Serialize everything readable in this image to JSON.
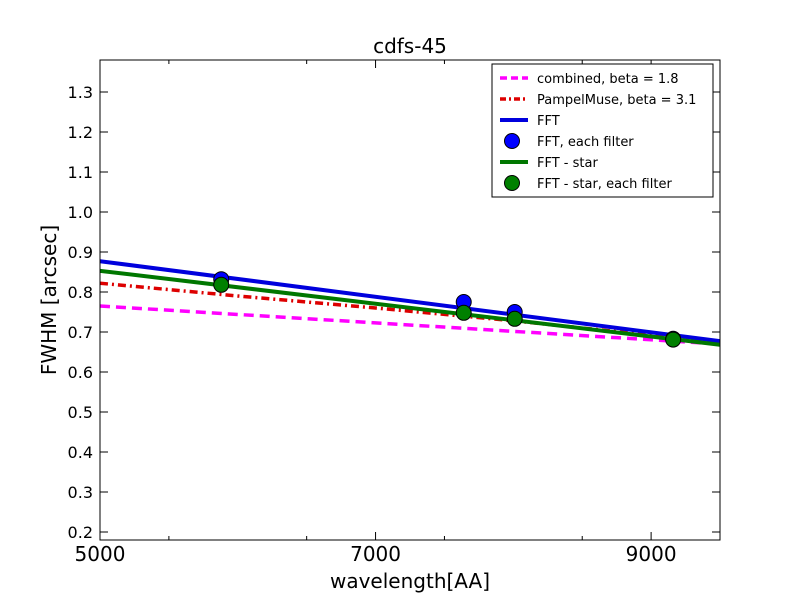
{
  "chart_data": {
    "type": "line",
    "title": "cdfs-45",
    "xlabel": "wavelength[AA]",
    "ylabel": "FWHM [arcsec]",
    "xlim": [
      5000,
      9500
    ],
    "ylim": [
      0.18,
      1.38
    ],
    "x_ticks": [
      5000,
      7000,
      9000
    ],
    "y_ticks": [
      0.2,
      0.3,
      0.4,
      0.5,
      0.6,
      0.7,
      0.8,
      0.9,
      1.0,
      1.1,
      1.2,
      1.3
    ],
    "x_tick_labels": [
      "5000",
      "7000",
      "9000"
    ],
    "y_tick_labels": [
      "0.2",
      "0.3",
      "0.4",
      "0.5",
      "0.6",
      "0.7",
      "0.8",
      "0.9",
      "1.0",
      "1.1",
      "1.2",
      "1.3"
    ],
    "grid": false,
    "legend_position": "top-right",
    "series": [
      {
        "name": "combined, beta = 1.8",
        "kind": "line",
        "style": "dashed",
        "color": "#ff00ff",
        "x": [
          5000,
          9500
        ],
        "y": [
          0.765,
          0.67
        ]
      },
      {
        "name": "PampelMuse, beta = 3.1",
        "kind": "line",
        "style": "dashdot",
        "color": "#dd0000",
        "x": [
          5000,
          6000,
          7000,
          8000,
          9000,
          9500
        ],
        "y": [
          0.822,
          0.79,
          0.76,
          0.728,
          0.692,
          0.672
        ]
      },
      {
        "name": "FFT",
        "kind": "line",
        "style": "solid",
        "color": "#0000dd",
        "x": [
          5000,
          9500
        ],
        "y": [
          0.877,
          0.677
        ]
      },
      {
        "name": "FFT, each filter",
        "kind": "marker",
        "color": "#0000ff",
        "x": [
          5880,
          7640,
          8010,
          9160
        ],
        "y": [
          0.832,
          0.775,
          0.75,
          0.683
        ]
      },
      {
        "name": "FFT - star",
        "kind": "line",
        "style": "solid",
        "color": "#007700",
        "x": [
          5000,
          9500
        ],
        "y": [
          0.853,
          0.668
        ]
      },
      {
        "name": "FFT - star, each filter",
        "kind": "marker",
        "color": "#008000",
        "x": [
          5880,
          7640,
          8010,
          9160
        ],
        "y": [
          0.818,
          0.748,
          0.733,
          0.681
        ]
      }
    ]
  }
}
